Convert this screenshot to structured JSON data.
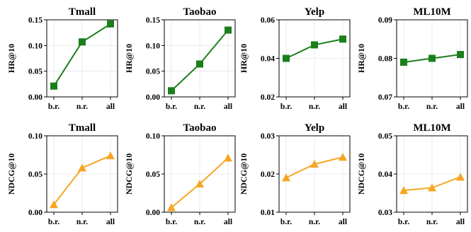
{
  "chart_data": [
    {
      "type": "line",
      "title": "Tmall",
      "ylabel": "HR@10",
      "categories": [
        "b.r.",
        "n.r.",
        "all"
      ],
      "values": [
        0.021,
        0.107,
        0.142
      ],
      "ylim": [
        0,
        0.15
      ],
      "yticks": [
        "0.00",
        "0.05",
        "0.10",
        "0.15"
      ],
      "marker": "square",
      "color": "#1a7f1a",
      "grid": true
    },
    {
      "type": "line",
      "title": "Taobao",
      "ylabel": "HR@10",
      "categories": [
        "b.r.",
        "n.r.",
        "all"
      ],
      "values": [
        0.012,
        0.064,
        0.13
      ],
      "ylim": [
        0,
        0.15
      ],
      "yticks": [
        "0.00",
        "0.05",
        "0.10",
        "0.15"
      ],
      "marker": "square",
      "color": "#1a7f1a",
      "grid": true
    },
    {
      "type": "line",
      "title": "Yelp",
      "ylabel": "HR@10",
      "categories": [
        "b.r.",
        "n.r.",
        "all"
      ],
      "values": [
        0.04,
        0.047,
        0.05
      ],
      "ylim": [
        0.02,
        0.06
      ],
      "yticks": [
        "0.02",
        "0.04",
        "0.06"
      ],
      "marker": "square",
      "color": "#1a7f1a",
      "grid": true
    },
    {
      "type": "line",
      "title": "ML10M",
      "ylabel": "HR@10",
      "categories": [
        "b.r.",
        "n.r.",
        "all"
      ],
      "values": [
        0.079,
        0.08,
        0.081
      ],
      "ylim": [
        0.07,
        0.09
      ],
      "yticks": [
        "0.07",
        "0.08",
        "0.09"
      ],
      "marker": "square",
      "color": "#1a7f1a",
      "grid": true
    },
    {
      "type": "line",
      "title": "Tmall",
      "ylabel": "NDCG@10",
      "categories": [
        "b.r.",
        "n.r.",
        "all"
      ],
      "values": [
        0.01,
        0.058,
        0.074
      ],
      "ylim": [
        0,
        0.1
      ],
      "yticks": [
        "0.00",
        "0.05",
        "0.10"
      ],
      "marker": "triangle",
      "color": "#f5a623",
      "grid": true
    },
    {
      "type": "line",
      "title": "Taobao",
      "ylabel": "NDCG@10",
      "categories": [
        "b.r.",
        "n.r.",
        "all"
      ],
      "values": [
        0.006,
        0.037,
        0.071
      ],
      "ylim": [
        0,
        0.1
      ],
      "yticks": [
        "0.00",
        "0.05",
        "0.10"
      ],
      "marker": "triangle",
      "color": "#f5a623",
      "grid": true
    },
    {
      "type": "line",
      "title": "Yelp",
      "ylabel": "NDCG@10",
      "categories": [
        "b.r.",
        "n.r.",
        "all"
      ],
      "values": [
        0.019,
        0.0226,
        0.0244
      ],
      "ylim": [
        0.01,
        0.03
      ],
      "yticks": [
        "0.01",
        "0.02",
        "0.03"
      ],
      "marker": "triangle",
      "color": "#f5a623",
      "grid": true
    },
    {
      "type": "line",
      "title": "ML10M",
      "ylabel": "NDCG@10",
      "categories": [
        "b.r.",
        "n.r.",
        "all"
      ],
      "values": [
        0.0357,
        0.0364,
        0.0392
      ],
      "ylim": [
        0.03,
        0.05
      ],
      "yticks": [
        "0.03",
        "0.04",
        "0.05"
      ],
      "marker": "triangle",
      "color": "#f5a623",
      "grid": true
    }
  ]
}
